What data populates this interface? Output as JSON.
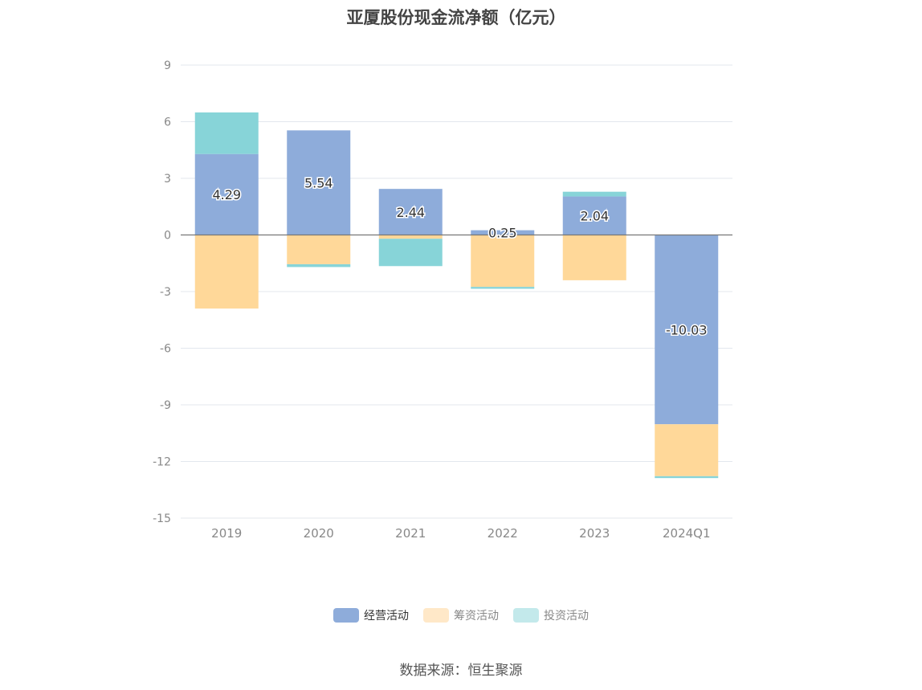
{
  "chart_data": {
    "type": "bar",
    "stacked": true,
    "title": "亚厦股份现金流净额（亿元）",
    "categories": [
      "2019",
      "2020",
      "2021",
      "2022",
      "2023",
      "2024Q1"
    ],
    "series": [
      {
        "name": "经营活动",
        "color": "#8eacda",
        "values": [
          4.29,
          5.54,
          2.44,
          0.25,
          2.04,
          -10.03
        ]
      },
      {
        "name": "筹资活动",
        "color": "#ffd899",
        "values": [
          -3.9,
          -1.55,
          -0.2,
          -2.75,
          -2.4,
          -2.75
        ]
      },
      {
        "name": "投资活动",
        "color": "#87d4d8",
        "values": [
          2.2,
          -0.15,
          -1.45,
          -0.1,
          0.25,
          -0.1
        ]
      }
    ],
    "data_labels": [
      "4.29",
      "5.54",
      "2.44",
      "0.25",
      "2.04",
      "-10.03"
    ],
    "y_ticks": [
      "9",
      "6",
      "3",
      "0",
      "-3",
      "-6",
      "-9",
      "-12",
      "-15"
    ],
    "ylim": [
      -15,
      9
    ],
    "grid": true,
    "legend_position": "bottom"
  },
  "legend": {
    "items": [
      {
        "label": "经营活动",
        "color": "#8eacda"
      },
      {
        "label": "筹资活动",
        "color": "#ffe8c8"
      },
      {
        "label": "投资活动",
        "color": "#c3e9eb"
      }
    ]
  },
  "source": "数据来源：恒生聚源"
}
